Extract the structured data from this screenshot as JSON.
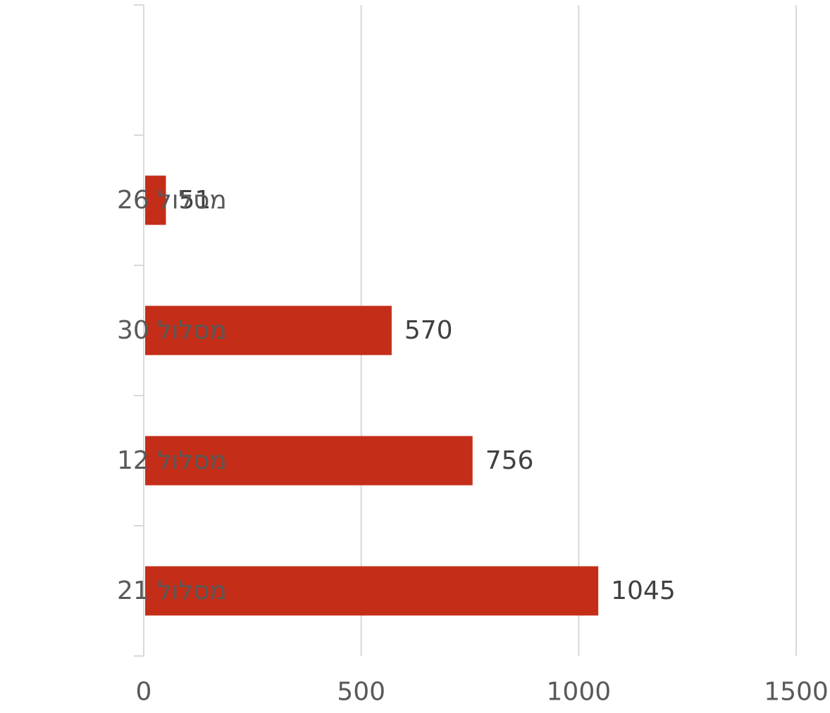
{
  "chart_data": {
    "type": "bar",
    "orientation": "horizontal",
    "categories": [
      "מסלול 21",
      "מסלול 12",
      "מסלול 30",
      "מסלול 26"
    ],
    "values": [
      1045,
      756,
      570,
      51
    ],
    "category_slots": 5,
    "xlim": [
      0,
      1500
    ],
    "xticks": [
      0,
      500,
      1000,
      1500
    ],
    "grid": true,
    "legend": "none",
    "title": "",
    "xlabel": "",
    "ylabel": "",
    "bar_color": "#C42E18",
    "grid_color": "#D9D9D9"
  }
}
